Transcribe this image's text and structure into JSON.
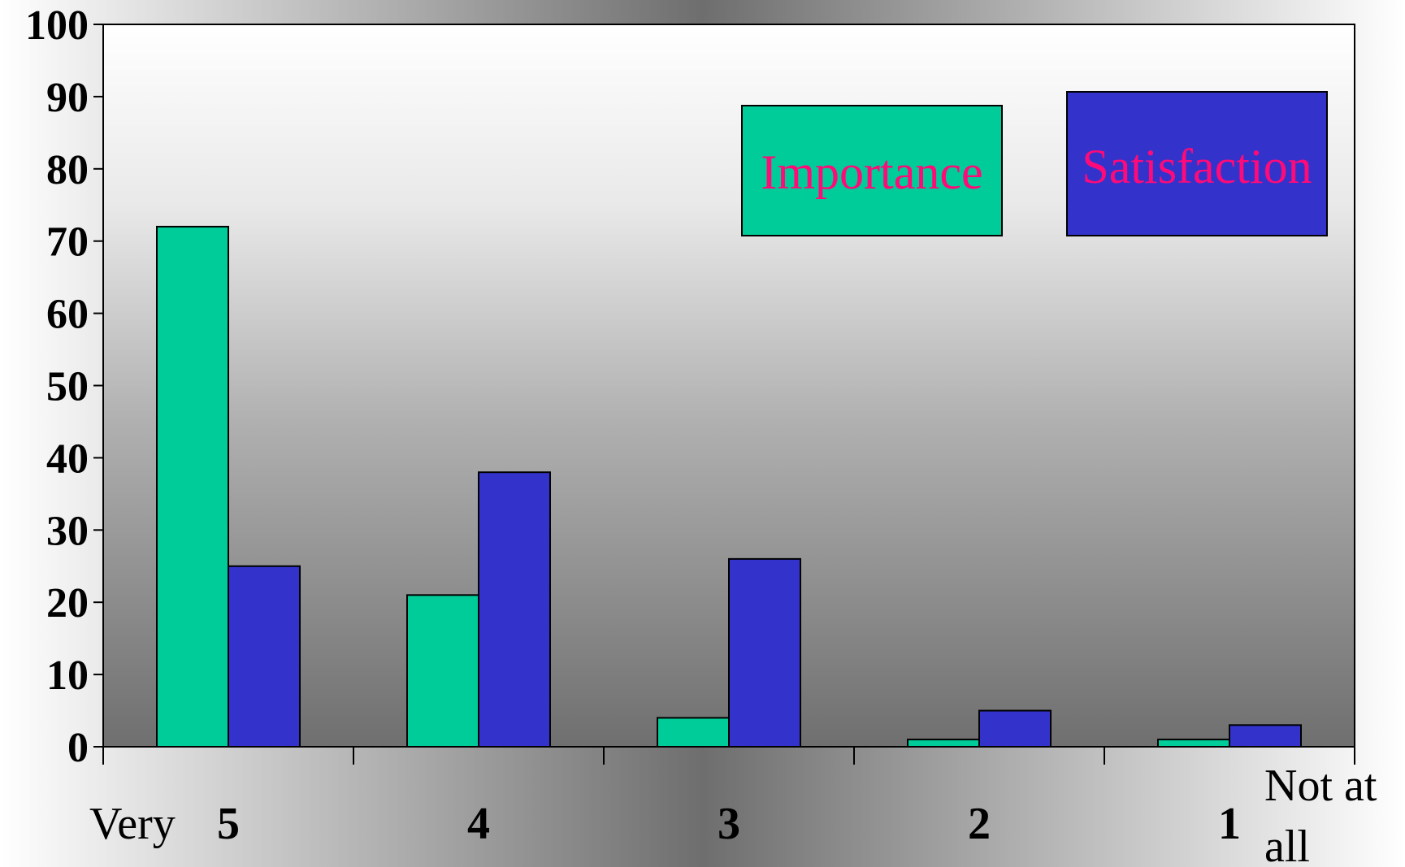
{
  "chart_data": {
    "type": "bar",
    "categories": [
      "5",
      "4",
      "3",
      "2",
      "1"
    ],
    "series": [
      {
        "name": "Importance",
        "values": [
          72,
          21,
          4,
          1,
          1
        ],
        "color": "#00cc99"
      },
      {
        "name": "Satisfaction",
        "values": [
          25,
          38,
          26,
          5,
          3
        ],
        "color": "#3333cc"
      }
    ],
    "yticks": [
      "0",
      "10",
      "20",
      "30",
      "40",
      "50",
      "60",
      "70",
      "80",
      "90",
      "100"
    ],
    "ylim": [
      0,
      100
    ],
    "x_end_labels": {
      "left": "Very",
      "right_line1": "Not at",
      "right_line2": "all"
    },
    "legend": [
      {
        "label": "Importance",
        "fill": "#00cc99"
      },
      {
        "label": "Satisfaction",
        "fill": "#3333cc"
      }
    ],
    "legend_text_color": "#ff0a78",
    "plot_background": "gradient-gray",
    "grid": false
  }
}
